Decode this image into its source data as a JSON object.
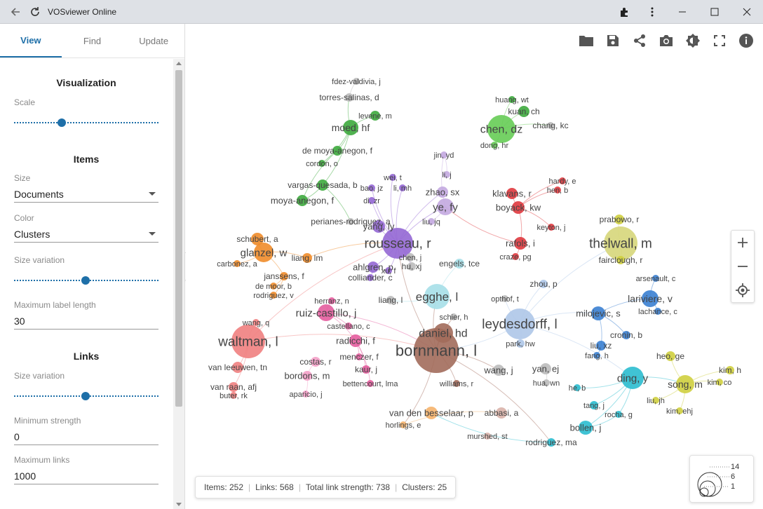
{
  "window": {
    "title": "VOSviewer Online"
  },
  "tabs": [
    {
      "label": "View"
    },
    {
      "label": "Find"
    },
    {
      "label": "Update"
    }
  ],
  "settings": {
    "visualization": {
      "heading": "Visualization",
      "scale_label": "Scale",
      "scale_value": 0.3
    },
    "items": {
      "heading": "Items",
      "size_label": "Size",
      "size_value": "Documents",
      "color_label": "Color",
      "color_value": "Clusters",
      "size_variation_label": "Size variation",
      "size_variation_value": 0.5,
      "max_label_length_label": "Maximum label length",
      "max_label_length_value": "30"
    },
    "links": {
      "heading": "Links",
      "size_variation_label": "Size variation",
      "size_variation_value": 0.5,
      "min_strength_label": "Minimum strength",
      "min_strength_value": "0",
      "max_links_label": "Maximum links",
      "max_links_value": "1000"
    }
  },
  "status": {
    "items": "Items: 252",
    "links": "Links: 568",
    "total_link_strength": "Total link strength: 738",
    "clusters": "Clusters: 25"
  },
  "legend": {
    "values": [
      "14",
      "6",
      "1"
    ]
  },
  "colors": {
    "accent": "#1e6fa8",
    "red": "#e0393e",
    "green": "#3daa3d",
    "purple": "#9467d4",
    "pink": "#e45d9f",
    "orange": "#f08c2a",
    "brown": "#a26b5b",
    "lightblue": "#aec7e8",
    "blue": "#3a7fd1",
    "cyan": "#2bbccf",
    "yellow": "#cfcf3f",
    "salmon": "#f08080",
    "gray": "#bbbbbb"
  },
  "network": {
    "nodes": [
      {
        "label": "fdez-valdivia, j",
        "c": "#bbbbbb",
        "s": 5,
        "fs": 11
      },
      {
        "label": "torres-salinas, d",
        "c": "#bbbbbb",
        "s": 6,
        "fs": 12
      },
      {
        "label": "levene, m",
        "c": "#3daa3d",
        "s": 7,
        "fs": 11
      },
      {
        "label": "moed, hf",
        "c": "#3daa3d",
        "s": 11,
        "fs": 14
      },
      {
        "label": "de moya-anegon, f",
        "c": "#3daa3d",
        "s": 7,
        "fs": 12
      },
      {
        "label": "cordon, o",
        "c": "#3daa3d",
        "s": 5,
        "fs": 11
      },
      {
        "label": "vargas-quesada, b",
        "c": "#3daa3d",
        "s": 8,
        "fs": 12
      },
      {
        "label": "moya-anegon, f",
        "c": "#3daa3d",
        "s": 8,
        "fs": 13
      },
      {
        "label": "perianes-rodriguez, a",
        "c": "#bbbbbb",
        "s": 5,
        "fs": 12
      },
      {
        "label": "huang, wt",
        "c": "#3daa3d",
        "s": 5,
        "fs": 11
      },
      {
        "label": "kuan, ch",
        "c": "#3daa3d",
        "s": 8,
        "fs": 12
      },
      {
        "label": "chen, dz",
        "c": "#66cc55",
        "s": 20,
        "fs": 16
      },
      {
        "label": "chang, kc",
        "c": "#bbbbbb",
        "s": 5,
        "fs": 12
      },
      {
        "label": "dong, hr",
        "c": "#66cc55",
        "s": 5,
        "fs": 11
      },
      {
        "label": "jin, yd",
        "c": "#c3a8e0",
        "s": 5,
        "fs": 11
      },
      {
        "label": "li, j",
        "c": "#c3a8e0",
        "s": 5,
        "fs": 11
      },
      {
        "label": "wei, t",
        "c": "#9467d4",
        "s": 5,
        "fs": 11
      },
      {
        "label": "bao, jz",
        "c": "#9467d4",
        "s": 5,
        "fs": 11
      },
      {
        "label": "li, mh",
        "c": "#9467d4",
        "s": 5,
        "fs": 11
      },
      {
        "label": "di, zr",
        "c": "#9467d4",
        "s": 5,
        "fs": 11
      },
      {
        "label": "zhao, sx",
        "c": "#c3a8e0",
        "s": 8,
        "fs": 13
      },
      {
        "label": "ye, fy",
        "c": "#c3a8e0",
        "s": 12,
        "fs": 15
      },
      {
        "label": "liu, jq",
        "c": "#c3a8e0",
        "s": 5,
        "fs": 11
      },
      {
        "label": "yang, ly",
        "c": "#9467d4",
        "s": 9,
        "fs": 13
      },
      {
        "label": "rousseau, r",
        "c": "#9467d4",
        "s": 22,
        "fs": 19
      },
      {
        "label": "chen, j",
        "c": "#bbbbbb",
        "s": 6,
        "fs": 11
      },
      {
        "label": "hu, xj",
        "c": "#bbbbbb",
        "s": 6,
        "fs": 12
      },
      {
        "label": "xu, f",
        "c": "#9467d4",
        "s": 5,
        "fs": 11
      },
      {
        "label": "ahlgren, p",
        "c": "#9467d4",
        "s": 8,
        "fs": 13
      },
      {
        "label": "colliander, c",
        "c": "#9467d4",
        "s": 5,
        "fs": 12
      },
      {
        "label": "schubert, a",
        "c": "#f08c2a",
        "s": 9,
        "fs": 12
      },
      {
        "label": "glanzel, w",
        "c": "#f08c2a",
        "s": 14,
        "fs": 15
      },
      {
        "label": "carbonez, a",
        "c": "#f08c2a",
        "s": 5,
        "fs": 11
      },
      {
        "label": "liang, lm",
        "c": "#f08c2a",
        "s": 7,
        "fs": 12
      },
      {
        "label": "janssens, f",
        "c": "#f08c2a",
        "s": 6,
        "fs": 12
      },
      {
        "label": "de moor, b",
        "c": "#f08c2a",
        "s": 5,
        "fs": 11
      },
      {
        "label": "rodriguez, v",
        "c": "#f08c2a",
        "s": 5,
        "fs": 11
      },
      {
        "label": "engels, tce",
        "c": "#a6dfe8",
        "s": 7,
        "fs": 12
      },
      {
        "label": "egghe, l",
        "c": "#a6dfe8",
        "s": 18,
        "fs": 17
      },
      {
        "label": "liang, l",
        "c": "#bbbbbb",
        "s": 6,
        "fs": 12
      },
      {
        "label": "klavans, r",
        "c": "#e0393e",
        "s": 8,
        "fs": 13
      },
      {
        "label": "hardy, e",
        "c": "#e0393e",
        "s": 5,
        "fs": 11
      },
      {
        "label": "hen, b",
        "c": "#e0393e",
        "s": 5,
        "fs": 11
      },
      {
        "label": "boyack, kw",
        "c": "#e0393e",
        "s": 9,
        "fs": 13
      },
      {
        "label": "keyton, j",
        "c": "#e0393e",
        "s": 5,
        "fs": 11
      },
      {
        "label": "rafols, i",
        "c": "#e0393e",
        "s": 9,
        "fs": 13
      },
      {
        "label": "craze, pg",
        "c": "#e0393e",
        "s": 5,
        "fs": 11
      },
      {
        "label": "prabowo, r",
        "c": "#cfcf3f",
        "s": 7,
        "fs": 12
      },
      {
        "label": "thelwall, m",
        "c": "#d6d67a",
        "s": 24,
        "fs": 19
      },
      {
        "label": "fairclough, r",
        "c": "#cfcf3f",
        "s": 6,
        "fs": 12
      },
      {
        "label": "arsenault, c",
        "c": "#3a7fd1",
        "s": 5,
        "fs": 11
      },
      {
        "label": "lariviere, v",
        "c": "#3a7fd1",
        "s": 12,
        "fs": 14
      },
      {
        "label": "lachance, c",
        "c": "#3a7fd1",
        "s": 5,
        "fs": 11
      },
      {
        "label": "milojevic, s",
        "c": "#3a7fd1",
        "s": 10,
        "fs": 13
      },
      {
        "label": "cronin, b",
        "c": "#3a7fd1",
        "s": 6,
        "fs": 12
      },
      {
        "label": "liu, xz",
        "c": "#3a7fd1",
        "s": 7,
        "fs": 12
      },
      {
        "label": "fang, h",
        "c": "#3a7fd1",
        "s": 5,
        "fs": 11
      },
      {
        "label": "opthof, t",
        "c": "#bbbbbb",
        "s": 5,
        "fs": 11
      },
      {
        "label": "zhou, p",
        "c": "#aec7e8",
        "s": 6,
        "fs": 12
      },
      {
        "label": "leydesdorff, l",
        "c": "#aec7e8",
        "s": 22,
        "fs": 19
      },
      {
        "label": "park, hw",
        "c": "#aec7e8",
        "s": 6,
        "fs": 11
      },
      {
        "label": "herranz, n",
        "c": "#e45d9f",
        "s": 5,
        "fs": 11
      },
      {
        "label": "ruiz-castillo, j",
        "c": "#e45d9f",
        "s": 12,
        "fs": 15
      },
      {
        "label": "castellano, c",
        "c": "#e45d9f",
        "s": 5,
        "fs": 11
      },
      {
        "label": "radicchi, f",
        "c": "#e45d9f",
        "s": 9,
        "fs": 13
      },
      {
        "label": "menczer, f",
        "c": "#e45d9f",
        "s": 5,
        "fs": 12
      },
      {
        "label": "kaur, j",
        "c": "#e45d9f",
        "s": 6,
        "fs": 12
      },
      {
        "label": "bettencourt, lma",
        "c": "#e45d9f",
        "s": 5,
        "fs": 11
      },
      {
        "label": "wang, q",
        "c": "#f08080",
        "s": 5,
        "fs": 11
      },
      {
        "label": "waltman, l",
        "c": "#f08080",
        "s": 24,
        "fs": 19
      },
      {
        "label": "van leeuwen, tn",
        "c": "#f08080",
        "s": 8,
        "fs": 12
      },
      {
        "label": "van raan, afj",
        "c": "#f08080",
        "s": 7,
        "fs": 12
      },
      {
        "label": "buter, rk",
        "c": "#f08080",
        "s": 5,
        "fs": 11
      },
      {
        "label": "costas, r",
        "c": "#f4a0c8",
        "s": 7,
        "fs": 12
      },
      {
        "label": "bordons, m",
        "c": "#f4a0c8",
        "s": 7,
        "fs": 13
      },
      {
        "label": "aparicio, j",
        "c": "#f4a0c8",
        "s": 5,
        "fs": 11
      },
      {
        "label": "schier, h",
        "c": "#bbbbbb",
        "s": 5,
        "fs": 11
      },
      {
        "label": "daniel, hd",
        "c": "#a26b5b",
        "s": 14,
        "fs": 16
      },
      {
        "label": "bornmann, l",
        "c": "#a26b5b",
        "s": 32,
        "fs": 22
      },
      {
        "label": "williams, r",
        "c": "#a26b5b",
        "s": 5,
        "fs": 11
      },
      {
        "label": "wang, j",
        "c": "#bbbbbb",
        "s": 8,
        "fs": 13
      },
      {
        "label": "yan, ej",
        "c": "#bbbbbb",
        "s": 8,
        "fs": 13
      },
      {
        "label": "hua, wn",
        "c": "#bbbbbb",
        "s": 5,
        "fs": 11
      },
      {
        "label": "heo, ge",
        "c": "#cfcf3f",
        "s": 7,
        "fs": 12
      },
      {
        "label": "kim, h",
        "c": "#cfcf3f",
        "s": 6,
        "fs": 12
      },
      {
        "label": "kim, co",
        "c": "#cfcf3f",
        "s": 5,
        "fs": 11
      },
      {
        "label": "song, m",
        "c": "#cfcf3f",
        "s": 13,
        "fs": 14
      },
      {
        "label": "liu, jh",
        "c": "#cfcf3f",
        "s": 5,
        "fs": 11
      },
      {
        "label": "kim, ehj",
        "c": "#cfcf3f",
        "s": 5,
        "fs": 11
      },
      {
        "label": "ding, y",
        "c": "#2bbccf",
        "s": 16,
        "fs": 15
      },
      {
        "label": "he, b",
        "c": "#2bbccf",
        "s": 5,
        "fs": 11
      },
      {
        "label": "tang, j",
        "c": "#2bbccf",
        "s": 6,
        "fs": 11
      },
      {
        "label": "rocha, g",
        "c": "#2bbccf",
        "s": 5,
        "fs": 11
      },
      {
        "label": "bollen, j",
        "c": "#2bbccf",
        "s": 10,
        "fs": 13
      },
      {
        "label": "rodriguez, ma",
        "c": "#2bbccf",
        "s": 6,
        "fs": 12
      },
      {
        "label": "van den besselaar, p",
        "c": "#f5b26b",
        "s": 9,
        "fs": 13
      },
      {
        "label": "horlings, e",
        "c": "#f5b26b",
        "s": 5,
        "fs": 11
      },
      {
        "label": "abbasi, a",
        "c": "#d9b3aa",
        "s": 8,
        "fs": 12
      },
      {
        "label": "murshed, st",
        "c": "#d9b3aa",
        "s": 5,
        "fs": 11
      }
    ]
  }
}
